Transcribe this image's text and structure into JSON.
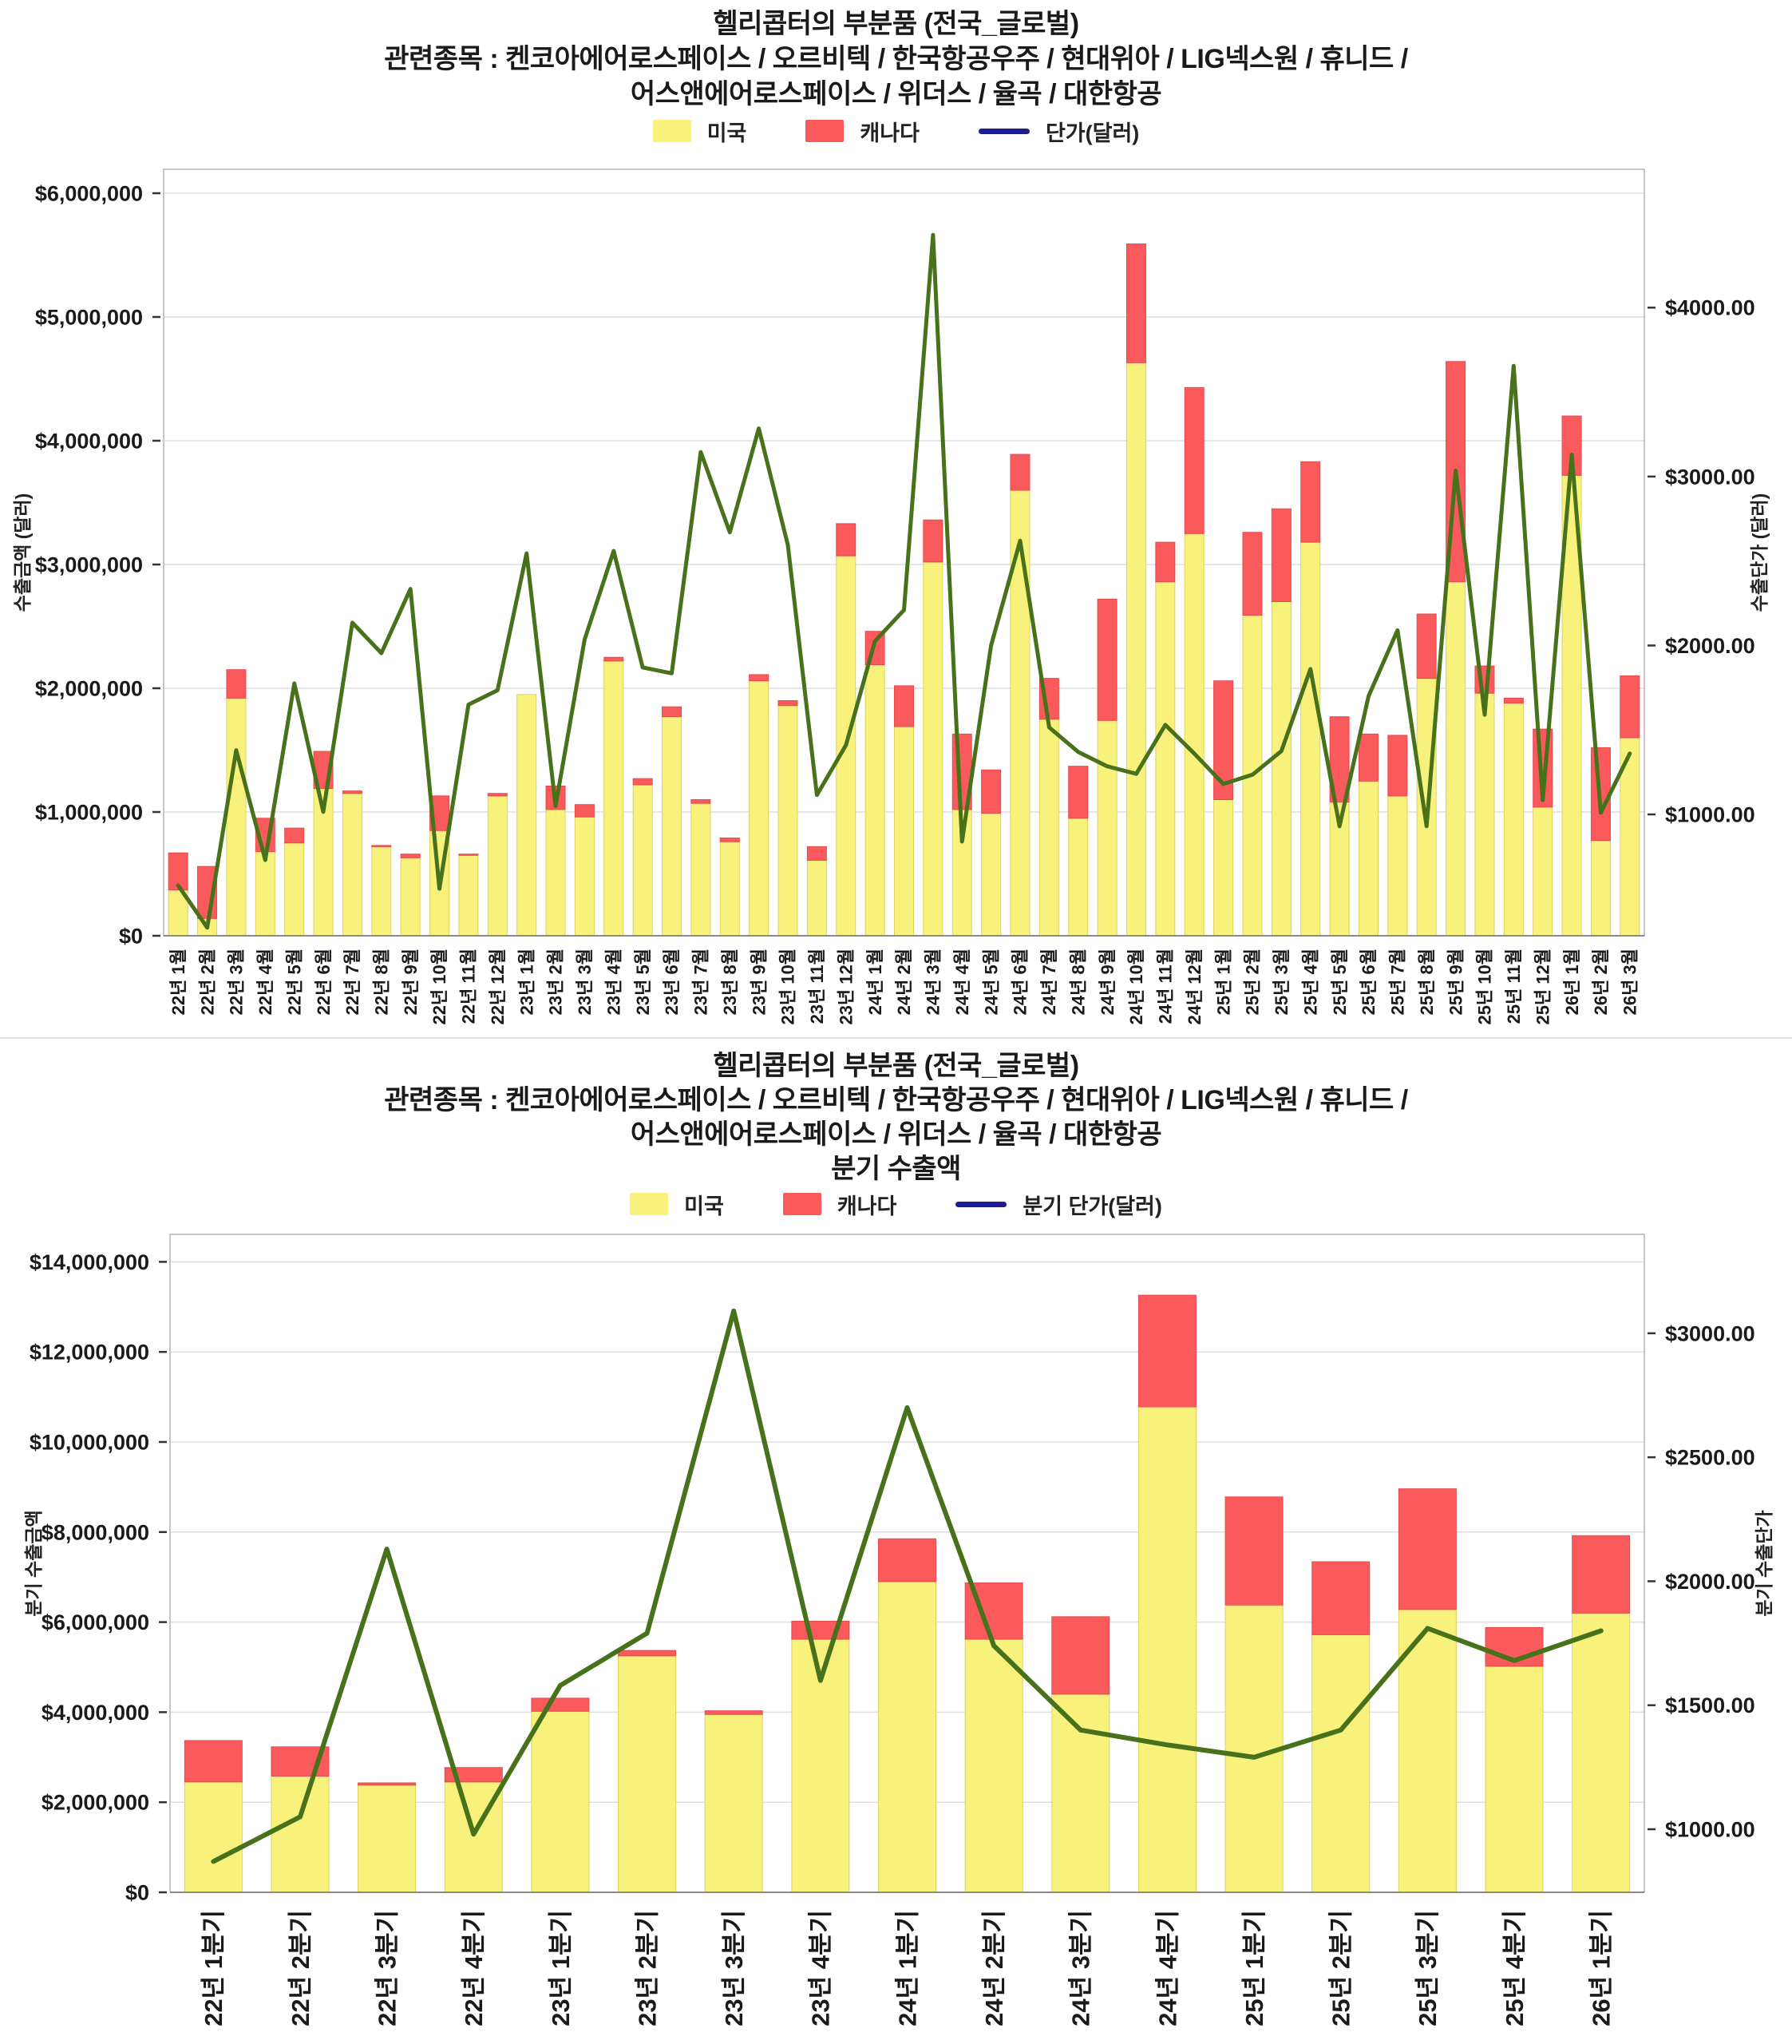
{
  "chart_data": [
    {
      "type": "bar+line",
      "title": "헬리콥터의 부분품 (전국_글로벌)",
      "title_lines": [
        "헬리콥터의 부분품 (전국_글로벌)",
        "관련종목 : 켄코아에어로스페이스 / 오르비텍 / 한국항공우주 / 현대위아 / LIG넥스원 / 휴니드 /",
        "어스앤에어로스페이스 / 위더스 / 율곡 / 대한항공"
      ],
      "legend_position": "top",
      "grid": true,
      "categories": [
        "22년 1월",
        "22년 2월",
        "22년 3월",
        "22년 4월",
        "22년 5월",
        "22년 6월",
        "22년 7월",
        "22년 8월",
        "22년 9월",
        "22년 10월",
        "22년 11월",
        "22년 12월",
        "23년 1월",
        "23년 2월",
        "23년 3월",
        "23년 4월",
        "23년 5월",
        "23년 6월",
        "23년 7월",
        "23년 8월",
        "23년 9월",
        "23년 10월",
        "23년 11월",
        "23년 12월",
        "24년 1월",
        "24년 2월",
        "24년 3월",
        "24년 4월",
        "24년 5월",
        "24년 6월",
        "24년 7월",
        "24년 8월",
        "24년 9월",
        "24년 10월",
        "24년 11월",
        "24년 12월",
        "25년 1월",
        "25년 2월",
        "25년 3월",
        "25년 4월",
        "25년 5월",
        "25년 6월",
        "25년 7월",
        "25년 8월",
        "25년 9월",
        "25년 10월",
        "25년 11월",
        "25년 12월",
        "26년 1월",
        "26년 2월",
        "26년 3월"
      ],
      "series": [
        {
          "name": "미국",
          "type": "bar",
          "stack": "total",
          "color": "#f8f17c",
          "border": "#ded35e",
          "values": [
            370000,
            140000,
            1920000,
            680000,
            750000,
            1190000,
            1150000,
            720000,
            630000,
            850000,
            650000,
            1130000,
            1950000,
            1020000,
            960000,
            2220000,
            1220000,
            1770000,
            1070000,
            760000,
            2060000,
            1860000,
            610000,
            3070000,
            2190000,
            1690000,
            3020000,
            1020000,
            990000,
            3600000,
            1750000,
            950000,
            1740000,
            4630000,
            2860000,
            3250000,
            1100000,
            2590000,
            2700000,
            3180000,
            1080000,
            1250000,
            1130000,
            2080000,
            2860000,
            1960000,
            1880000,
            1040000,
            3720000,
            770000,
            1600000
          ]
        },
        {
          "name": "캐나다",
          "type": "bar",
          "stack": "total",
          "color": "#fa5a5c",
          "border": "#e64a4d",
          "values": [
            300000,
            420000,
            230000,
            270000,
            120000,
            300000,
            20000,
            10000,
            30000,
            280000,
            10000,
            20000,
            0,
            190000,
            100000,
            30000,
            50000,
            80000,
            30000,
            30000,
            50000,
            40000,
            110000,
            260000,
            270000,
            330000,
            340000,
            610000,
            350000,
            290000,
            330000,
            420000,
            980000,
            960000,
            320000,
            1180000,
            960000,
            670000,
            750000,
            650000,
            690000,
            380000,
            490000,
            520000,
            1780000,
            220000,
            40000,
            630000,
            480000,
            750000,
            500000
          ]
        },
        {
          "name": "단가(달러)",
          "type": "line",
          "axis": "right",
          "legend_color": "#1d1d91",
          "line_color": "#47711b",
          "values": [
            580,
            330,
            1380,
            730,
            1775,
            1015,
            2135,
            1955,
            2335,
            560,
            1650,
            1735,
            2545,
            1050,
            2035,
            2560,
            1870,
            1835,
            3145,
            2670,
            3285,
            2595,
            1115,
            1410,
            2025,
            2210,
            4430,
            840,
            2000,
            2620,
            1515,
            1370,
            1285,
            1240,
            1530,
            1360,
            1180,
            1235,
            1375,
            1860,
            930,
            1700,
            2090,
            930,
            3035,
            1590,
            3655,
            1085,
            3130,
            1010,
            1360
          ]
        }
      ],
      "y_left": {
        "label": "수출금액 (달러)",
        "range": [
          0,
          6200000
        ],
        "ticks": [
          {
            "value": 0,
            "label": "$0"
          },
          {
            "value": 1000000,
            "label": "$1,000,000"
          },
          {
            "value": 2000000,
            "label": "$2,000,000"
          },
          {
            "value": 3000000,
            "label": "$3,000,000"
          },
          {
            "value": 4000000,
            "label": "$4,000,000"
          },
          {
            "value": 5000000,
            "label": "$5,000,000"
          },
          {
            "value": 6000000,
            "label": "$6,000,000"
          }
        ]
      },
      "y_right": {
        "label": "수출단가 (달러)",
        "range": [
          300,
          4800
        ],
        "ticks": [
          {
            "value": 1000,
            "label": "$1000.00"
          },
          {
            "value": 2000,
            "label": "$2000.00"
          },
          {
            "value": 3000,
            "label": "$3000.00"
          },
          {
            "value": 4000,
            "label": "$4000.00"
          }
        ]
      }
    },
    {
      "type": "bar+line",
      "title": "헬리콥터의 부분품 (전국_글로벌)",
      "title_lines": [
        "헬리콥터의 부분품 (전국_글로벌)",
        "관련종목 : 켄코아에어로스페이스 / 오르비텍 / 한국항공우주 / 현대위아 / LIG넥스원 / 휴니드 /",
        "어스앤에어로스페이스 / 위더스 / 율곡 / 대한항공",
        "분기 수출액"
      ],
      "legend_position": "top",
      "grid": true,
      "categories": [
        "22년 1분기",
        "22년 2분기",
        "22년 3분기",
        "22년 4분기",
        "23년 1분기",
        "23년 2분기",
        "23년 3분기",
        "23년 4분기",
        "24년 1분기",
        "24년 2분기",
        "24년 3분기",
        "24년 4분기",
        "25년 1분기",
        "25년 2분기",
        "25년 3분기",
        "25년 4분기",
        "26년 1분기"
      ],
      "series": [
        {
          "name": "미국",
          "type": "bar",
          "stack": "total",
          "color": "#f8f17c",
          "border": "#ded35e",
          "values": [
            2450000,
            2580000,
            2380000,
            2450000,
            4020000,
            5250000,
            3950000,
            5620000,
            6900000,
            5620000,
            4400000,
            10780000,
            6380000,
            5720000,
            6280000,
            5020000,
            6200000
          ]
        },
        {
          "name": "캐나다",
          "type": "bar",
          "stack": "total",
          "color": "#fa5a5c",
          "border": "#e64a4d",
          "values": [
            920000,
            650000,
            50000,
            320000,
            290000,
            120000,
            80000,
            400000,
            950000,
            1250000,
            1720000,
            2480000,
            2400000,
            1620000,
            2680000,
            860000,
            1720000
          ]
        },
        {
          "name": "분기 단가(달러)",
          "type": "line",
          "axis": "right",
          "legend_color": "#1d1d91",
          "line_color": "#47711b",
          "values": [
            870,
            1050,
            2130,
            980,
            1580,
            1790,
            3090,
            1600,
            2700,
            1740,
            1400,
            1340,
            1290,
            1400,
            1810,
            1680,
            1800
          ]
        }
      ],
      "y_left": {
        "label": "분기 수출금액",
        "range": [
          0,
          14600000
        ],
        "ticks": [
          {
            "value": 0,
            "label": "$0"
          },
          {
            "value": 2000000,
            "label": "$2,000,000"
          },
          {
            "value": 4000000,
            "label": "$4,000,000"
          },
          {
            "value": 6000000,
            "label": "$6,000,000"
          },
          {
            "value": 8000000,
            "label": "$8,000,000"
          },
          {
            "value": 10000000,
            "label": "$10,000,000"
          },
          {
            "value": 12000000,
            "label": "$12,000,000"
          },
          {
            "value": 14000000,
            "label": "$14,000,000"
          }
        ]
      },
      "y_right": {
        "label": "분기 수출단가",
        "range": [
          750,
          3400
        ],
        "ticks": [
          {
            "value": 1000,
            "label": "$1000.00"
          },
          {
            "value": 1500,
            "label": "$1500.00"
          },
          {
            "value": 2000,
            "label": "$2000.00"
          },
          {
            "value": 2500,
            "label": "$2500.00"
          },
          {
            "value": 3000,
            "label": "$3000.00"
          }
        ]
      }
    }
  ]
}
